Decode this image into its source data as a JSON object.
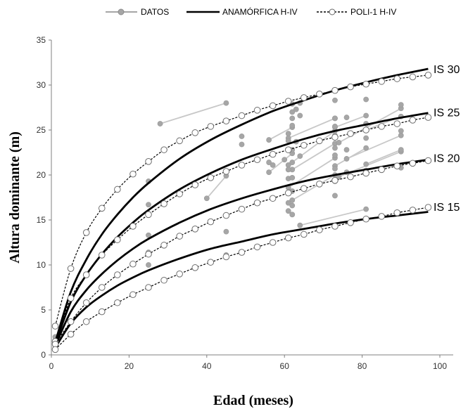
{
  "chart_data": {
    "type": "line",
    "title": "",
    "xlabel": "Edad (meses)",
    "ylabel": "Altura dominante (m)",
    "xlim": [
      0,
      100
    ],
    "ylim": [
      0,
      35
    ],
    "x_ticks": [
      0,
      20,
      40,
      60,
      80,
      100
    ],
    "y_ticks": [
      0,
      5,
      10,
      15,
      20,
      25,
      30,
      35
    ],
    "grid": false,
    "legend_position": "top",
    "legend": [
      {
        "label": "DATOS",
        "style": "gray-line-filled-circle"
      },
      {
        "label": "ANAMÓRFICA H-IV",
        "style": "solid-thick-black"
      },
      {
        "label": "POLI-1 H-IV",
        "style": "dashed-black-open-circle"
      }
    ],
    "site_labels": [
      {
        "text": "IS 30",
        "y": 31.8
      },
      {
        "text": "IS 25",
        "y": 27.0
      },
      {
        "text": "IS 20",
        "y": 21.9
      },
      {
        "text": "IS 15",
        "y": 16.5
      }
    ],
    "colors": {
      "data": "#a6a6a6",
      "data_line": "#c8c8c8",
      "model": "#000000"
    },
    "series": [
      {
        "name": "ANAMÓRFICA H-IV",
        "curve": "IS 30",
        "x": [
          1,
          5,
          9,
          13,
          17,
          21,
          25,
          33,
          41,
          49,
          57,
          65,
          73,
          81,
          89,
          97
        ],
        "y": [
          1.4,
          7.0,
          10.6,
          13.4,
          15.6,
          17.5,
          19.1,
          21.8,
          23.9,
          25.6,
          27.1,
          28.3,
          29.4,
          30.3,
          31.1,
          31.8
        ]
      },
      {
        "name": "ANAMÓRFICA H-IV",
        "curve": "IS 25",
        "x": [
          1,
          5,
          9,
          13,
          17,
          21,
          25,
          33,
          41,
          49,
          57,
          65,
          73,
          81,
          89,
          97
        ],
        "y": [
          1.2,
          5.9,
          8.9,
          11.2,
          13.1,
          14.7,
          16.1,
          18.4,
          20.2,
          21.7,
          22.9,
          24.0,
          24.9,
          25.6,
          26.3,
          26.9
        ]
      },
      {
        "name": "ANAMÓRFICA H-IV",
        "curve": "IS 20",
        "x": [
          1,
          5,
          9,
          13,
          17,
          21,
          25,
          33,
          41,
          49,
          57,
          65,
          73,
          81,
          89,
          97
        ],
        "y": [
          1.0,
          4.8,
          7.2,
          9.0,
          10.5,
          11.8,
          12.9,
          14.7,
          16.2,
          17.4,
          18.4,
          19.3,
          20.0,
          20.6,
          21.2,
          21.7
        ]
      },
      {
        "name": "ANAMÓRFICA H-IV",
        "curve": "IS 15",
        "x": [
          1,
          5,
          9,
          13,
          17,
          21,
          25,
          33,
          41,
          49,
          57,
          65,
          73,
          81,
          89,
          97
        ],
        "y": [
          0.8,
          3.5,
          5.3,
          6.6,
          7.7,
          8.6,
          9.4,
          10.7,
          11.8,
          12.6,
          13.4,
          14.0,
          14.6,
          15.1,
          15.5,
          15.9
        ]
      },
      {
        "name": "POLI-1 H-IV",
        "curve": "IS 30",
        "x": [
          1,
          5,
          9,
          13,
          17,
          21,
          25,
          29,
          33,
          37,
          41,
          45,
          49,
          53,
          57,
          61,
          65,
          69,
          73,
          77,
          81,
          85,
          89,
          93,
          97
        ],
        "y": [
          3.2,
          9.6,
          13.6,
          16.3,
          18.4,
          20.1,
          21.5,
          22.8,
          23.8,
          24.7,
          25.4,
          26.0,
          26.6,
          27.2,
          27.7,
          28.2,
          28.6,
          29.0,
          29.4,
          29.8,
          30.1,
          30.4,
          30.7,
          30.9,
          31.1
        ]
      },
      {
        "name": "POLI-1 H-IV",
        "curve": "IS 25",
        "x": [
          1,
          5,
          9,
          13,
          17,
          21,
          25,
          29,
          33,
          37,
          41,
          45,
          49,
          53,
          57,
          61,
          65,
          69,
          73,
          77,
          81,
          85,
          89,
          93,
          97
        ],
        "y": [
          1.5,
          6.3,
          8.9,
          11.1,
          12.8,
          14.3,
          15.6,
          16.8,
          17.9,
          18.9,
          19.7,
          20.4,
          21.1,
          21.7,
          22.3,
          22.8,
          23.3,
          23.8,
          24.2,
          24.6,
          25.0,
          25.4,
          25.7,
          26.1,
          26.4
        ]
      },
      {
        "name": "POLI-1 H-IV",
        "curve": "IS 20",
        "x": [
          1,
          5,
          9,
          13,
          17,
          21,
          25,
          29,
          33,
          37,
          41,
          45,
          49,
          53,
          57,
          61,
          65,
          69,
          73,
          77,
          81,
          85,
          89,
          93,
          97
        ],
        "y": [
          1.2,
          3.7,
          5.8,
          7.5,
          8.9,
          10.1,
          11.2,
          12.2,
          13.2,
          14.0,
          14.8,
          15.5,
          16.2,
          16.9,
          17.4,
          18.0,
          18.5,
          19.0,
          19.4,
          19.8,
          20.2,
          20.6,
          21.0,
          21.3,
          21.6
        ]
      },
      {
        "name": "POLI-1 H-IV",
        "curve": "IS 15",
        "x": [
          1,
          5,
          9,
          13,
          17,
          21,
          25,
          29,
          33,
          37,
          41,
          45,
          49,
          53,
          57,
          61,
          65,
          69,
          73,
          77,
          81,
          85,
          89,
          93,
          97
        ],
        "y": [
          0.6,
          2.3,
          3.7,
          4.8,
          5.8,
          6.7,
          7.5,
          8.3,
          9.0,
          9.7,
          10.3,
          10.9,
          11.4,
          12.0,
          12.5,
          13.0,
          13.4,
          13.9,
          14.3,
          14.7,
          15.1,
          15.4,
          15.8,
          16.1,
          16.4
        ]
      }
    ],
    "data_lines": [
      {
        "x": [
          28,
          45
        ],
        "y": [
          25.7,
          28.0
        ]
      },
      {
        "x": [
          40,
          45
        ],
        "y": [
          17.4,
          19.9
        ]
      },
      {
        "x": [
          56,
          62
        ],
        "y": [
          20.3,
          22.4
        ]
      },
      {
        "x": [
          56,
          62
        ],
        "y": [
          23.9,
          25.3
        ]
      },
      {
        "x": [
          61,
          73
        ],
        "y": [
          18.6,
          21.9
        ]
      },
      {
        "x": [
          61,
          73
        ],
        "y": [
          21.1,
          24.9
        ]
      },
      {
        "x": [
          61,
          73
        ],
        "y": [
          24.1,
          26.3
        ]
      },
      {
        "x": [
          62,
          73
        ],
        "y": [
          17.2,
          20.0
        ]
      },
      {
        "x": [
          62,
          73
        ],
        "y": [
          20.6,
          23.5
        ]
      },
      {
        "x": [
          64,
          81
        ],
        "y": [
          14.4,
          16.2
        ]
      },
      {
        "x": [
          73,
          81
        ],
        "y": [
          21.0,
          23.0
        ]
      },
      {
        "x": [
          73,
          81
        ],
        "y": [
          25.3,
          26.6
        ]
      },
      {
        "x": [
          74,
          90
        ],
        "y": [
          19.8,
          22.6
        ]
      },
      {
        "x": [
          74,
          90
        ],
        "y": [
          23.6,
          27.4
        ]
      },
      {
        "x": [
          76,
          90
        ],
        "y": [
          21.8,
          24.4
        ]
      },
      {
        "x": [
          81,
          90
        ],
        "y": [
          21.2,
          22.8
        ]
      },
      {
        "x": [
          81,
          90
        ],
        "y": [
          25.0,
          26.5
        ]
      }
    ],
    "data_points": {
      "x": [
        1,
        1,
        1,
        1,
        25,
        25,
        25,
        25,
        25,
        25,
        45,
        45,
        49,
        49,
        56,
        57,
        60,
        61,
        61,
        61,
        61,
        61,
        61,
        62,
        62,
        62,
        62,
        62,
        62,
        62,
        62,
        62,
        62,
        63,
        63,
        64,
        64,
        64,
        73,
        73,
        73,
        73,
        73,
        73,
        73,
        73,
        73,
        76,
        76,
        76,
        81,
        81,
        81,
        81,
        81,
        90,
        90,
        90
      ],
      "y": [
        1.0,
        1.3,
        1.6,
        2.0,
        10.0,
        11.4,
        13.3,
        15.7,
        16.7,
        19.3,
        11.1,
        13.7,
        24.3,
        23.4,
        21.4,
        21.1,
        21.7,
        16.0,
        16.9,
        19.6,
        20.6,
        23.8,
        24.6,
        15.6,
        16.6,
        18.2,
        19.7,
        21.4,
        22.8,
        25.5,
        26.3,
        27.0,
        27.9,
        23.7,
        27.3,
        22.1,
        26.6,
        28.0,
        17.7,
        19.3,
        20.7,
        22.2,
        23.0,
        24.4,
        25.4,
        26.3,
        28.3,
        20.3,
        22.8,
        26.4,
        20.5,
        24.1,
        25.7,
        28.4,
        30.1,
        20.8,
        24.9,
        27.8
      ]
    }
  }
}
